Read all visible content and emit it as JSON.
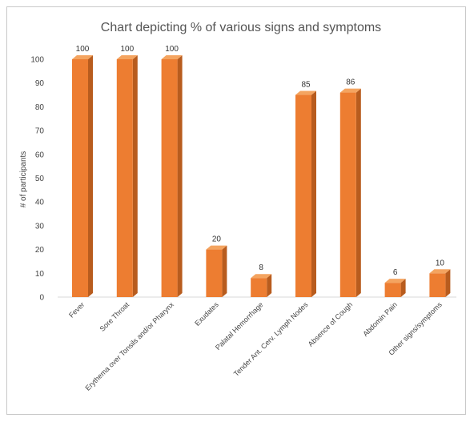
{
  "chart_data": {
    "type": "bar",
    "title": "Chart depicting % of various signs and symptoms",
    "xlabel": "",
    "ylabel": "# of participants",
    "ylim": [
      0,
      100
    ],
    "yticks": [
      "0",
      "10",
      "20",
      "30",
      "40",
      "50",
      "60",
      "70",
      "80",
      "90",
      "100"
    ],
    "grid": false,
    "style": "3d-column",
    "colors": {
      "bar_front": "#ED7D31",
      "bar_side": "#B85C1E",
      "bar_top": "#F4A460"
    },
    "categories": [
      "Fever",
      "Sore Throat",
      "Erythema over Tonsils and/or Pharynx",
      "Exudates",
      "Palatal Hemorrhage",
      "Tender Ant. Cerv. Lymph Nodes",
      "Absence of Cough",
      "Abdomin Pain",
      "Other signs/symptoms"
    ],
    "values": [
      100,
      100,
      100,
      20,
      8,
      85,
      86,
      6,
      10
    ]
  }
}
